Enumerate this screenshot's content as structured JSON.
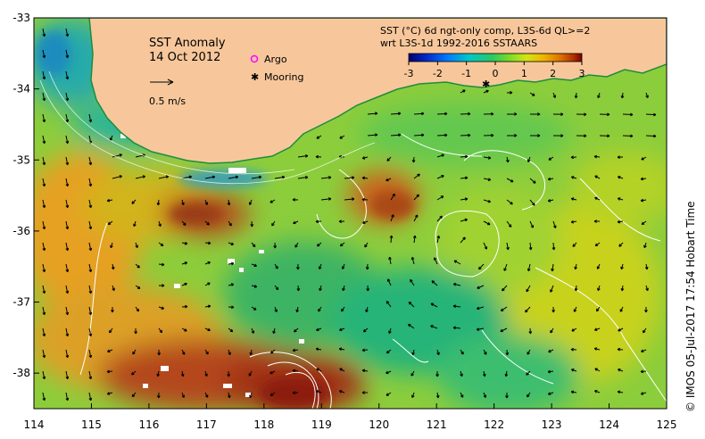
{
  "panel": {
    "title": "SST Anomaly",
    "date": "14 Oct 2012",
    "vector_scale_label": "0.5 m/s",
    "legend_argo": "Argo",
    "legend_mooring": "Mooring",
    "product_line1": "SST (°C) 6d ngt-only comp, L3S-6d QL>=2",
    "product_line2": "wrt L3S-1d 1992-2016 SSTAARS",
    "credit": "© IMOS 05-Jul-2017 17:54 Hobart Time"
  },
  "axes": {
    "lon_ticks": [
      "114",
      "115",
      "116",
      "117",
      "118",
      "119",
      "120",
      "121",
      "122",
      "123",
      "124",
      "125"
    ],
    "lat_ticks": [
      "-33",
      "-34",
      "-35",
      "-36",
      "-37",
      "-38"
    ],
    "lon_range": [
      114,
      125
    ],
    "lat_range": [
      -38.5,
      -33
    ]
  },
  "colorbar": {
    "ticks": [
      "-3",
      "-2",
      "-1",
      "0",
      "1",
      "2",
      "3"
    ],
    "range": [
      -3,
      3
    ],
    "colors": [
      "#00006e",
      "#0028c8",
      "#0078ff",
      "#00c8c8",
      "#28c864",
      "#78dc28",
      "#d2e614",
      "#f0b400",
      "#dc6e00",
      "#b43200",
      "#780000"
    ]
  },
  "colors": {
    "land": "#f7c79b",
    "ocean_base": "#8ccd3c",
    "argo": "#ff00ff",
    "mooring": "#000000",
    "contour": "#ffffff"
  }
}
